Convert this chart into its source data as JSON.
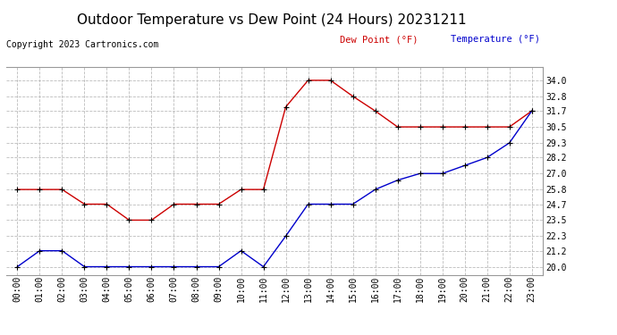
{
  "title": "Outdoor Temperature vs Dew Point (24 Hours) 20231211",
  "copyright": "Copyright 2023 Cartronics.com",
  "legend_dew": "Dew Point (°F)",
  "legend_temp": "Temperature (°F)",
  "hours": [
    "00:00",
    "01:00",
    "02:00",
    "03:00",
    "04:00",
    "05:00",
    "06:00",
    "07:00",
    "08:00",
    "09:00",
    "10:00",
    "11:00",
    "12:00",
    "13:00",
    "14:00",
    "15:00",
    "16:00",
    "17:00",
    "18:00",
    "19:00",
    "20:00",
    "21:00",
    "22:00",
    "23:00"
  ],
  "temperature": [
    20.0,
    21.2,
    21.2,
    20.0,
    20.0,
    20.0,
    20.0,
    20.0,
    20.0,
    20.0,
    21.2,
    20.0,
    22.3,
    24.7,
    24.7,
    24.7,
    25.8,
    26.5,
    27.0,
    27.0,
    27.6,
    28.2,
    29.3,
    31.7
  ],
  "dew_point": [
    25.8,
    25.8,
    25.8,
    24.7,
    24.7,
    23.5,
    23.5,
    24.7,
    24.7,
    24.7,
    25.8,
    25.8,
    32.0,
    34.0,
    34.0,
    32.8,
    31.7,
    30.5,
    30.5,
    30.5,
    30.5,
    30.5,
    30.5,
    31.7
  ],
  "ylim": [
    19.4,
    35.0
  ],
  "yticks": [
    20.0,
    21.2,
    22.3,
    23.5,
    24.7,
    25.8,
    27.0,
    28.2,
    29.3,
    30.5,
    31.7,
    32.8,
    34.0
  ],
  "temp_color": "#0000cc",
  "dew_color": "#cc0000",
  "marker_color": "#000000",
  "bg_color": "#ffffff",
  "grid_color": "#bbbbbb",
  "title_fontsize": 11,
  "legend_fontsize": 7.5,
  "tick_fontsize": 7,
  "copyright_fontsize": 7
}
